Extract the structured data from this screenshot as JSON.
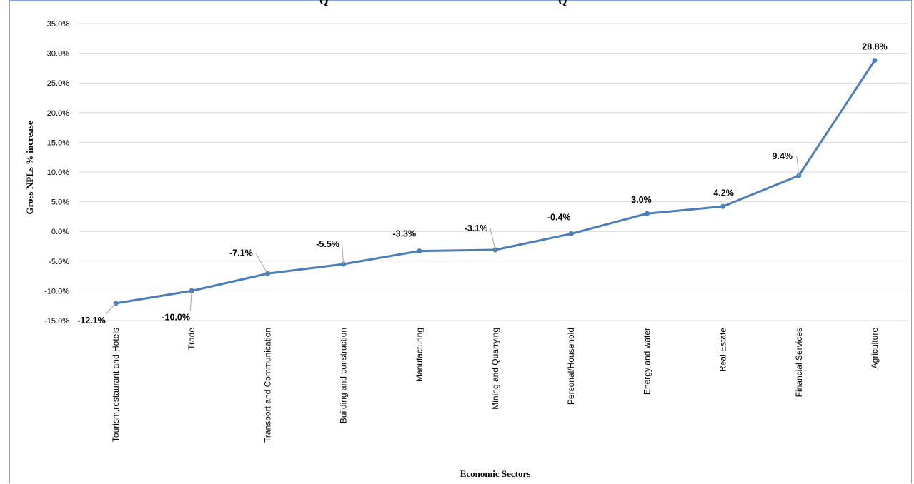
{
  "title_fragments": [
    "Q",
    "Q"
  ],
  "chart_data": {
    "type": "line",
    "categories": [
      "Tourism,restaurant and Hotels",
      "Trade",
      "Transport and Communication",
      "Building  and construction",
      "Manufacturing",
      "Mining and Quarrying",
      "Personal/Household",
      "Energy and water",
      "Real Estate",
      "Financial Services",
      "Agriculture"
    ],
    "series": [
      {
        "values": [
          -12.1,
          -10.0,
          -7.1,
          -5.5,
          -3.3,
          -3.1,
          -0.4,
          3.0,
          4.2,
          9.4,
          28.8
        ]
      }
    ],
    "data_labels": [
      "-12.1%",
      "-10.0%",
      "-7.1%",
      "-5.5%",
      "-3.3%",
      "-3.1%",
      "-0.4%",
      "3.0%",
      "4.2%",
      "9.4%",
      "28.8%"
    ],
    "xlabel": "Economic Sectors",
    "ylabel": "Gross NPLs % increase",
    "ylim": [
      -15,
      35
    ],
    "yticks": [
      -15,
      -10,
      -5,
      0,
      5,
      10,
      15,
      20,
      25,
      30,
      35
    ],
    "ytick_labels": [
      "-15.0%",
      "-10.0%",
      "-5.0%",
      "0.0%",
      "5.0%",
      "10.0%",
      "15.0%",
      "20.0%",
      "25.0%",
      "30.0%",
      "35.0%"
    ],
    "grid": true,
    "line_color": "#4a7ebb",
    "grid_color": "#d9d9d9"
  }
}
